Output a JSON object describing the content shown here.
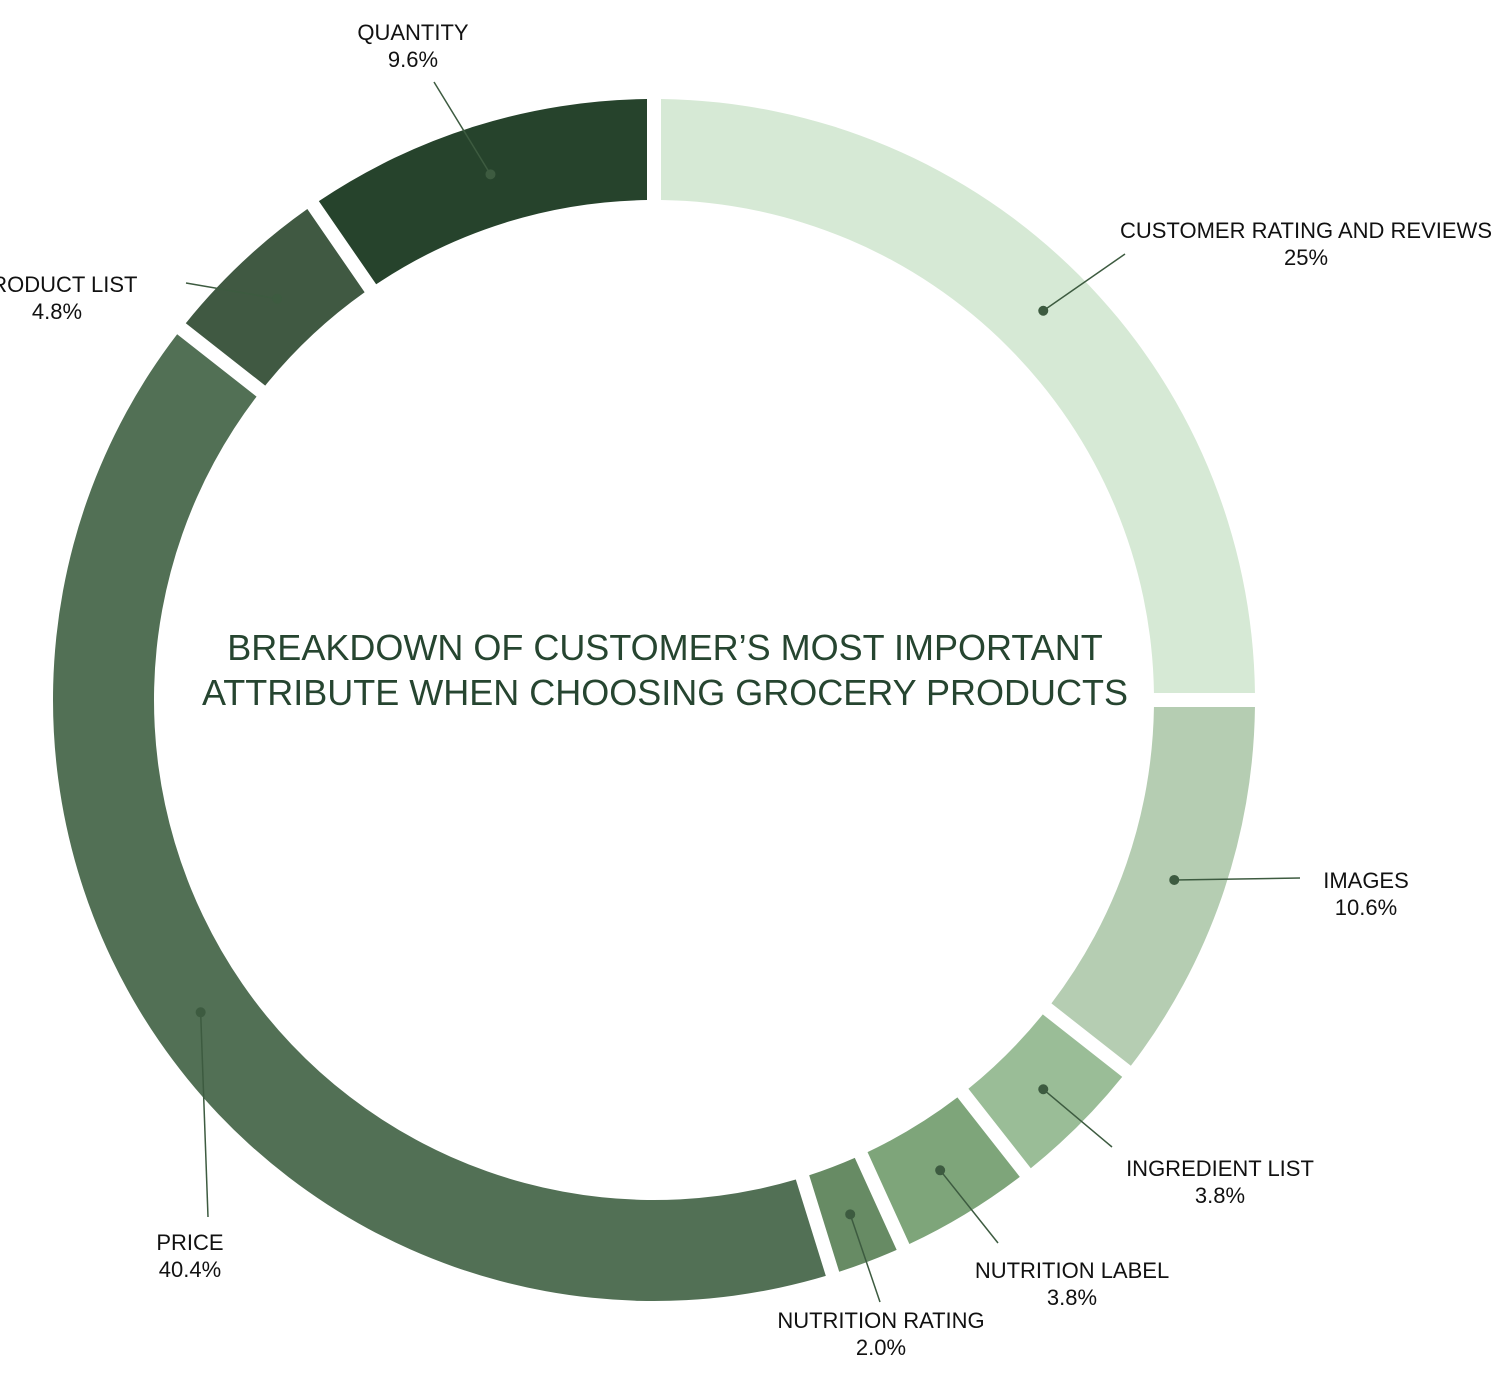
{
  "chart_data": {
    "type": "pie",
    "title_lines": [
      "BREAKDOWN OF CUSTOMER’S MOST IMPORTANT",
      "ATTRIBUTE WHEN CHOOSING GROCERY PRODUCTS"
    ],
    "slices": [
      {
        "name": "CUSTOMER RATING AND REVIEWS",
        "value": 25,
        "label": "25%",
        "color": "#d6e9d5"
      },
      {
        "name": "IMAGES",
        "value": 10.6,
        "label": "10.6%",
        "color": "#b5cdb2"
      },
      {
        "name": "INGREDIENT LIST",
        "value": 3.8,
        "label": "3.8%",
        "color": "#9abd97"
      },
      {
        "name": "NUTRITION LABEL",
        "value": 3.8,
        "label": "3.8%",
        "color": "#7ea57a"
      },
      {
        "name": "NUTRITION RATING",
        "value": 2.0,
        "label": "2.0%",
        "color": "#678b64"
      },
      {
        "name": "PRICE",
        "value": 40.4,
        "label": "40.4%",
        "color": "#527055"
      },
      {
        "name": "PRODUCT LIST",
        "value": 4.8,
        "label": "4.8%",
        "color": "#405942"
      },
      {
        "name": "QUANTITY",
        "value": 9.6,
        "label": "9.6%",
        "color": "#26432c"
      }
    ]
  }
}
